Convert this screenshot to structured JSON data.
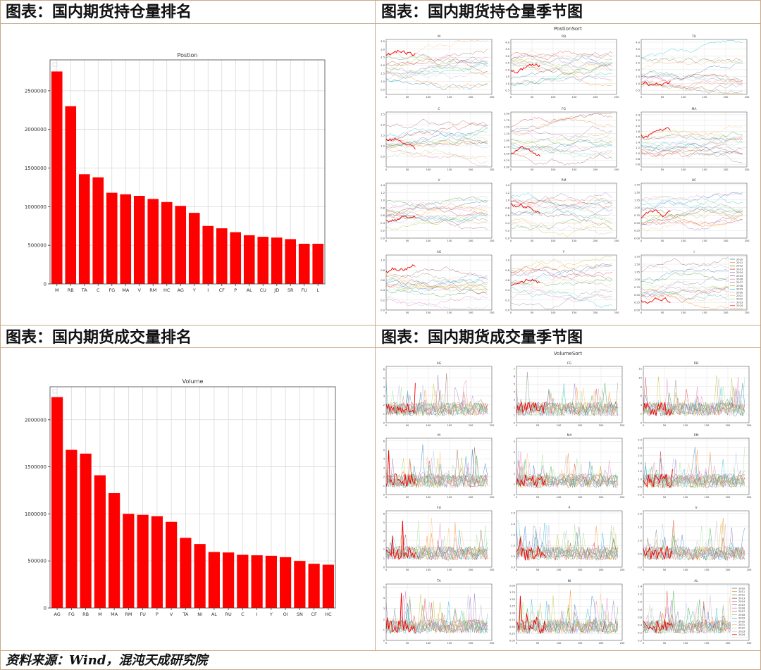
{
  "headers": {
    "position_rank": "图表：国内期货持仓量排名",
    "position_season": "图表：国内期货持仓量季节图",
    "volume_rank": "图表：国内期货成交量排名",
    "volume_season": "图表：国内期货成交量季节图"
  },
  "footer": "资料来源：Wind，混沌天成研究院",
  "colors": {
    "bar": "#ff0000",
    "grid": "#d9d9d9",
    "border": "#c9a98a"
  },
  "chart_data": [
    {
      "type": "bar",
      "title": "Postion",
      "categories": [
        "M",
        "RB",
        "TA",
        "C",
        "FG",
        "MA",
        "V",
        "RM",
        "HC",
        "AG",
        "Y",
        "I",
        "CF",
        "P",
        "AL",
        "CU",
        "JD",
        "SR",
        "FU",
        "L"
      ],
      "values": [
        2750000,
        2300000,
        1420000,
        1380000,
        1180000,
        1160000,
        1140000,
        1100000,
        1060000,
        1010000,
        920000,
        750000,
        720000,
        670000,
        630000,
        610000,
        600000,
        580000,
        520000,
        520000
      ],
      "yticks": [
        "0",
        "500000",
        "1000000",
        "1500000",
        "2000000",
        "2500000"
      ],
      "ylim": [
        0,
        2900000
      ],
      "grid": true
    },
    {
      "type": "bar",
      "title": "Volume",
      "categories": [
        "AG",
        "FG",
        "RB",
        "M",
        "MA",
        "RM",
        "FU",
        "P",
        "V",
        "TA",
        "NI",
        "AL",
        "RU",
        "C",
        "I",
        "Y",
        "OI",
        "SN",
        "CF",
        "HC"
      ],
      "values": [
        2240000,
        1680000,
        1640000,
        1410000,
        1220000,
        1000000,
        990000,
        975000,
        915000,
        745000,
        680000,
        595000,
        590000,
        565000,
        560000,
        555000,
        540000,
        500000,
        470000,
        460000
      ],
      "yticks": [
        "0",
        "500000",
        "1000000",
        "1500000",
        "2000000"
      ],
      "ylim": [
        0,
        2350000
      ],
      "grid": true
    },
    {
      "type": "line",
      "title": "PostionSort",
      "subplots": [
        {
          "name": "M",
          "yticks": [
            "0.5",
            "1.0",
            "1.5",
            "2.0",
            "2.5",
            "3.0",
            "3.5"
          ],
          "ylim": [
            0.2,
            3.6
          ]
        },
        {
          "name": "RB",
          "yticks": [
            "0.5",
            "1.0",
            "1.5",
            "2.0",
            "2.5",
            "3.0",
            "3.5",
            "4.0"
          ],
          "ylim": [
            0.2,
            4.2
          ]
        },
        {
          "name": "TA",
          "yticks": [
            "0.5",
            "1.0",
            "1.5",
            "2.0",
            "2.5",
            "3.0",
            "3.5",
            "4.0"
          ],
          "ylim": [
            0.2,
            4.2
          ]
        },
        {
          "name": "C",
          "yticks": [
            "0.5",
            "1.0",
            "1.5",
            "2.0",
            "2.5"
          ],
          "ylim": [
            0.0,
            2.6
          ]
        },
        {
          "name": "FG",
          "yticks": [
            "0.00",
            "0.25",
            "0.50",
            "0.75",
            "1.00",
            "1.25",
            "1.50",
            "1.75",
            "2.00"
          ],
          "ylim": [
            0.0,
            2.05
          ]
        },
        {
          "name": "MA",
          "yticks": [
            "0.6",
            "0.8",
            "1.0",
            "1.2",
            "1.4",
            "1.6",
            "1.8",
            "2.0",
            "2.2",
            "2.4"
          ],
          "ylim": [
            0.5,
            2.5
          ]
        },
        {
          "name": "V",
          "yticks": [
            "0.0",
            "0.2",
            "0.4",
            "0.6",
            "0.8",
            "1.0",
            "1.2",
            "1.4"
          ],
          "ylim": [
            0.0,
            1.45
          ]
        },
        {
          "name": "RM",
          "yticks": [
            "0.0",
            "0.2",
            "0.4",
            "0.6",
            "0.8",
            "1.0",
            "1.2",
            "1.4"
          ],
          "ylim": [
            0.0,
            1.45
          ]
        },
        {
          "name": "HC",
          "yticks": [
            "0.00",
            "0.25",
            "0.50",
            "0.75",
            "1.00",
            "1.25",
            "1.50",
            "1.75"
          ],
          "ylim": [
            0.0,
            1.8
          ]
        },
        {
          "name": "AG",
          "yticks": [
            "0.0",
            "0.2",
            "0.4",
            "0.6",
            "0.8",
            "1.0"
          ],
          "ylim": [
            0.0,
            1.1
          ]
        },
        {
          "name": "Y",
          "yticks": [
            "0.0",
            "0.2",
            "0.4",
            "0.6",
            "0.8",
            "1.0"
          ],
          "ylim": [
            0.0,
            1.1
          ]
        },
        {
          "name": "I",
          "yticks": [
            "0.00",
            "0.25",
            "0.50",
            "0.75",
            "1.00",
            "1.25",
            "1.50",
            "1.75"
          ],
          "ylim": [
            0.0,
            1.8
          ]
        }
      ],
      "xticks": [
        "0",
        "50",
        "100",
        "150",
        "200",
        "250"
      ],
      "xlim": [
        0,
        250
      ],
      "legend": [
        "2010",
        "2011",
        "2012",
        "2013",
        "2014",
        "2015",
        "2016",
        "2017",
        "2018",
        "2019",
        "2020",
        "2021",
        "2022",
        "2023",
        "2024"
      ]
    },
    {
      "type": "line",
      "title": "VolumeSort",
      "subplots": [
        {
          "name": "AG",
          "yticks": [
            "0",
            "1",
            "2",
            "3",
            "4",
            "5",
            "6"
          ],
          "ylim": [
            0,
            6.3
          ]
        },
        {
          "name": "FG",
          "yticks": [
            "0",
            "1",
            "2",
            "3",
            "4",
            "5",
            "6",
            "7"
          ],
          "ylim": [
            0,
            7.3
          ]
        },
        {
          "name": "RB",
          "yticks": [
            "0",
            "2",
            "4",
            "6",
            "8",
            "10",
            "12"
          ],
          "ylim": [
            0,
            12.5
          ]
        },
        {
          "name": "M",
          "yticks": [
            "0",
            "1",
            "2",
            "3",
            "4",
            "5",
            "6"
          ],
          "ylim": [
            0,
            6.3
          ]
        },
        {
          "name": "MA",
          "yticks": [
            "0",
            "1",
            "2",
            "3",
            "4",
            "5"
          ],
          "ylim": [
            0,
            5.3
          ]
        },
        {
          "name": "RM",
          "yticks": [
            "0.0",
            "0.5",
            "1.0",
            "1.5",
            "2.0",
            "2.5",
            "3.0",
            "3.5"
          ],
          "ylim": [
            0,
            3.6
          ]
        },
        {
          "name": "FU",
          "yticks": [
            "0",
            "1",
            "2",
            "3",
            "4",
            "5",
            "6"
          ],
          "ylim": [
            0,
            6.3
          ]
        },
        {
          "name": "P",
          "yticks": [
            "0.0",
            "0.5",
            "1.0",
            "1.5",
            "2.0",
            "2.5"
          ],
          "ylim": [
            0,
            2.6
          ]
        },
        {
          "name": "V",
          "yticks": [
            "0.0",
            "0.5",
            "1.0",
            "1.5",
            "2.0"
          ],
          "ylim": [
            0,
            2.1
          ]
        },
        {
          "name": "TA",
          "yticks": [
            "0",
            "1",
            "2",
            "3",
            "4",
            "5"
          ],
          "ylim": [
            0,
            5.3
          ]
        },
        {
          "name": "NI",
          "yticks": [
            "0.00",
            "0.25",
            "0.50",
            "0.75",
            "1.00",
            "1.25",
            "1.50",
            "1.75",
            "2.00"
          ],
          "ylim": [
            0,
            2.05
          ]
        },
        {
          "name": "AL",
          "yticks": [
            "0.0",
            "0.2",
            "0.4",
            "0.6",
            "0.8",
            "1.0",
            "1.2",
            "1.4"
          ],
          "ylim": [
            0,
            1.45
          ]
        }
      ],
      "xticks": [
        "0",
        "50",
        "100",
        "150",
        "200",
        "250"
      ],
      "xlim": [
        0,
        250
      ],
      "legend": [
        "2010",
        "2011",
        "2012",
        "2013",
        "2014",
        "2015",
        "2016",
        "2017",
        "2018",
        "2019",
        "2020",
        "2021",
        "2022",
        "2023",
        "2024"
      ]
    }
  ]
}
